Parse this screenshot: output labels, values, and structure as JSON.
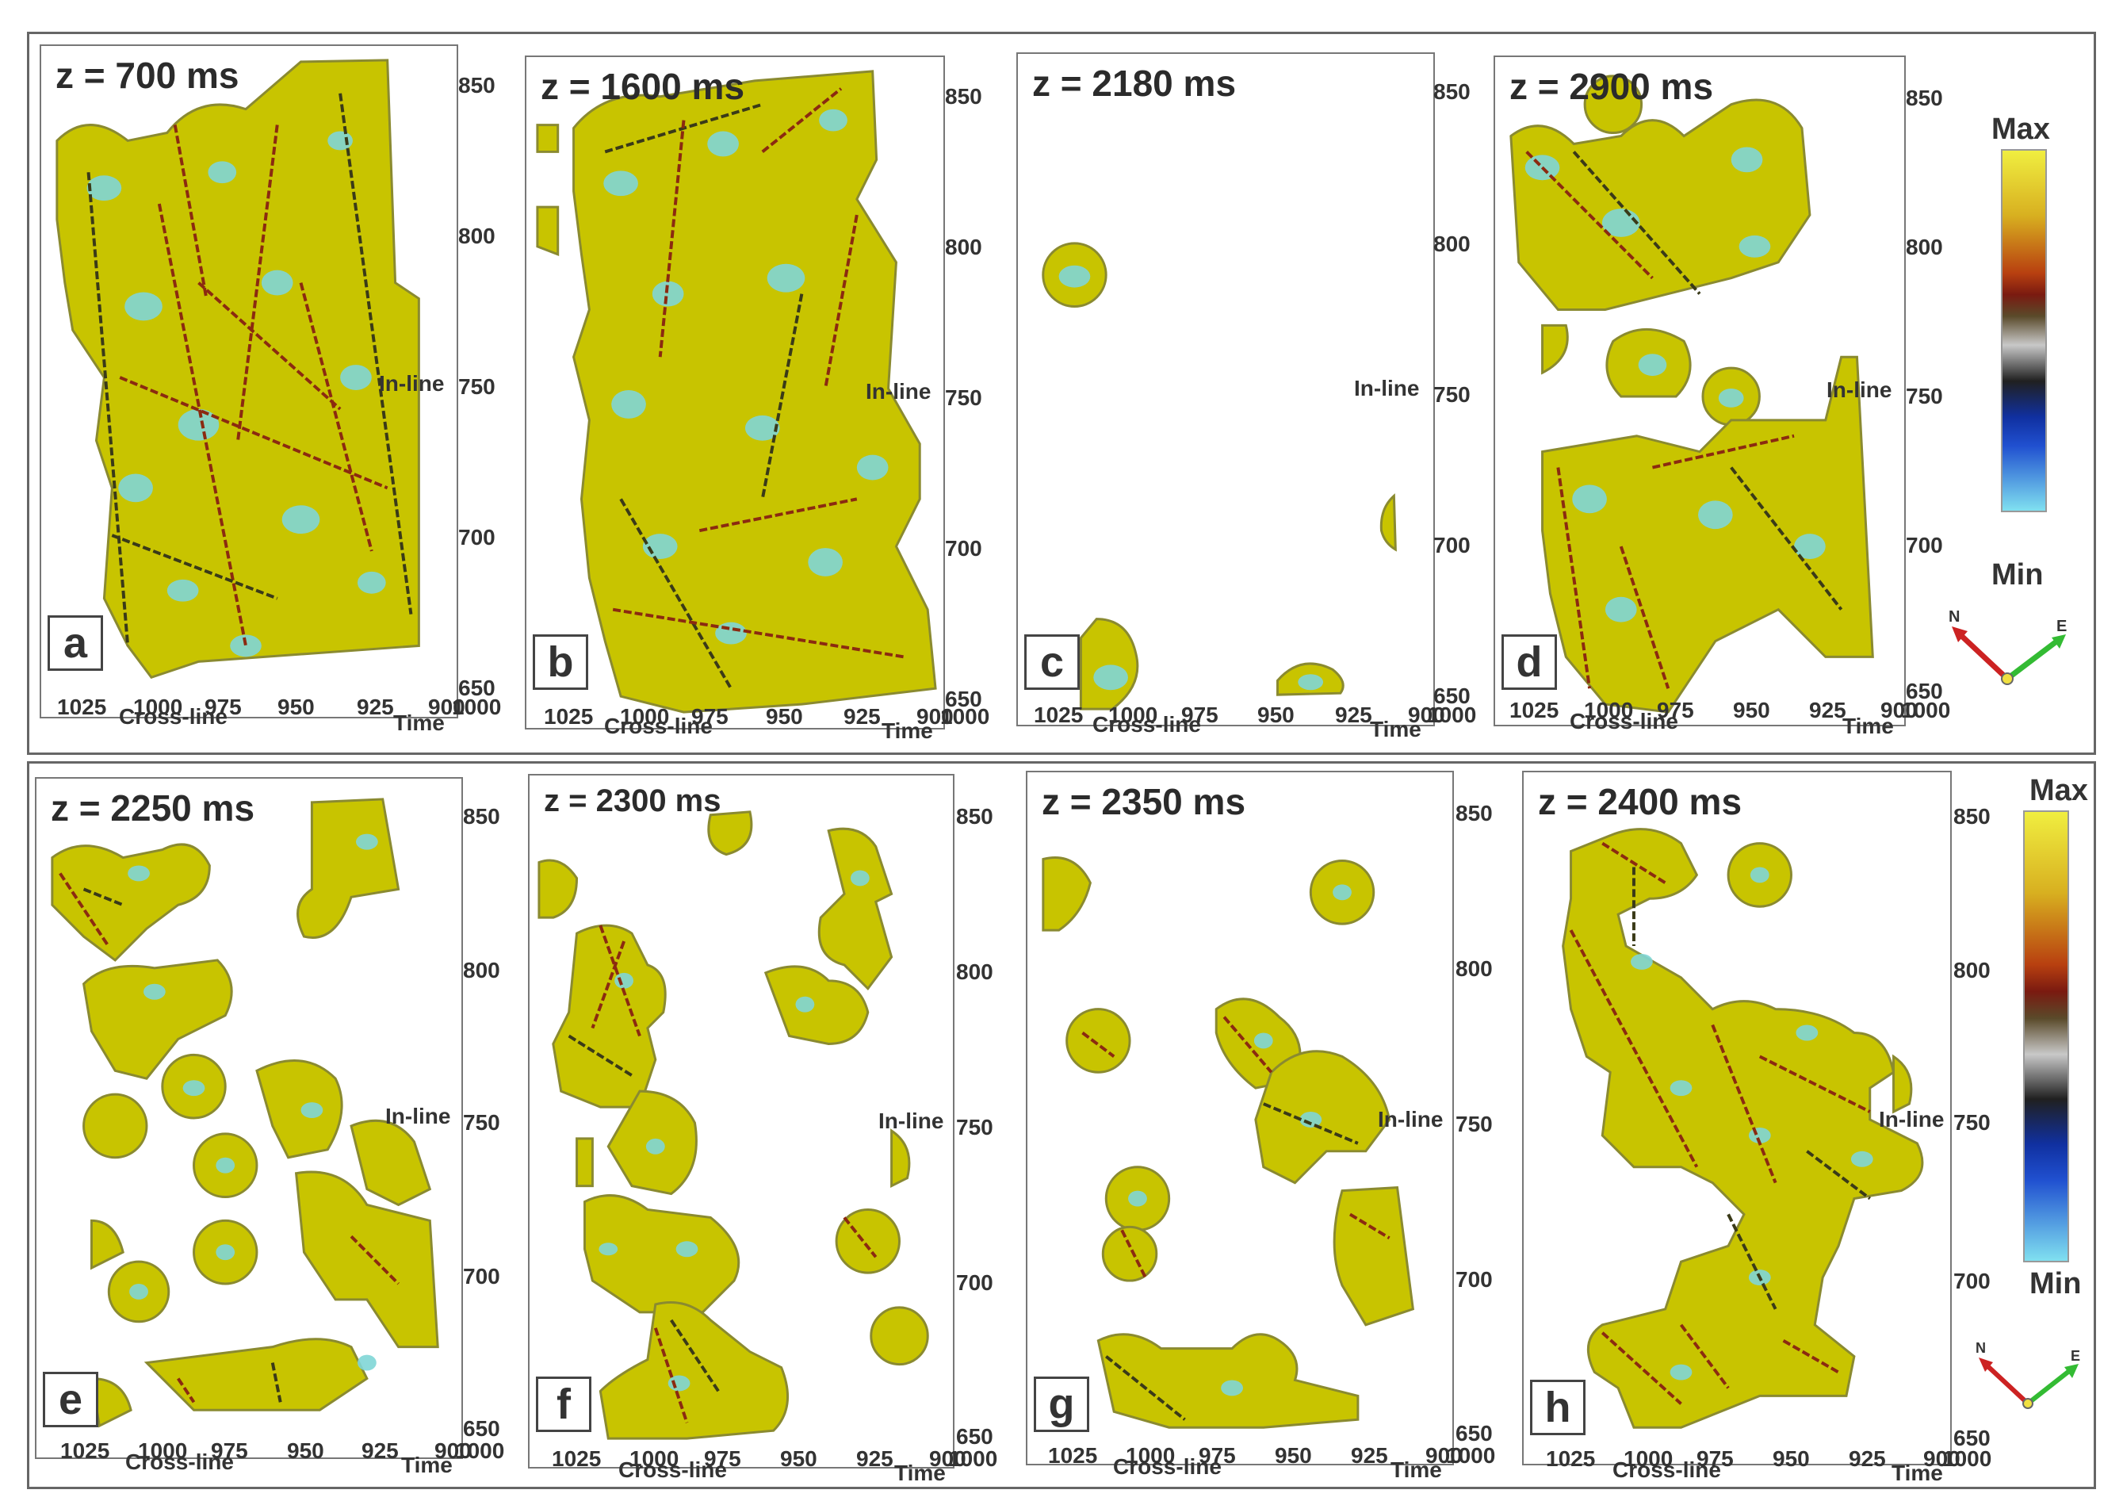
{
  "colors": {
    "fill": "#c8c400",
    "edge": "#8a8a30",
    "spot": "#7fd6d6",
    "fault": "#8b2a10",
    "fault_dark": "#3a3a18"
  },
  "axes": {
    "y_ticks": [
      "850",
      "800",
      "750",
      "700",
      "650"
    ],
    "x_ticks": [
      "1025",
      "1000",
      "975",
      "950",
      "925",
      "900"
    ],
    "x_overlap": "1000",
    "xlabel": "Cross-line",
    "ylabel": "In-line",
    "zlabel": "Time"
  },
  "panels": [
    {
      "letter": "a",
      "title": "z = 700 ms"
    },
    {
      "letter": "b",
      "title": "z = 1600 ms"
    },
    {
      "letter": "c",
      "title": "z = 2180 ms"
    },
    {
      "letter": "d",
      "title": "z = 2900 ms"
    },
    {
      "letter": "e",
      "title": "z = 2250 ms"
    },
    {
      "letter": "f",
      "title": "z = 2300 ms"
    },
    {
      "letter": "g",
      "title": "z = 2350 ms"
    },
    {
      "letter": "h",
      "title": "z = 2400 ms"
    }
  ],
  "colorbar": {
    "max_label": "Max",
    "min_label": "Min"
  },
  "compass": {
    "north": "N",
    "east": "E"
  }
}
